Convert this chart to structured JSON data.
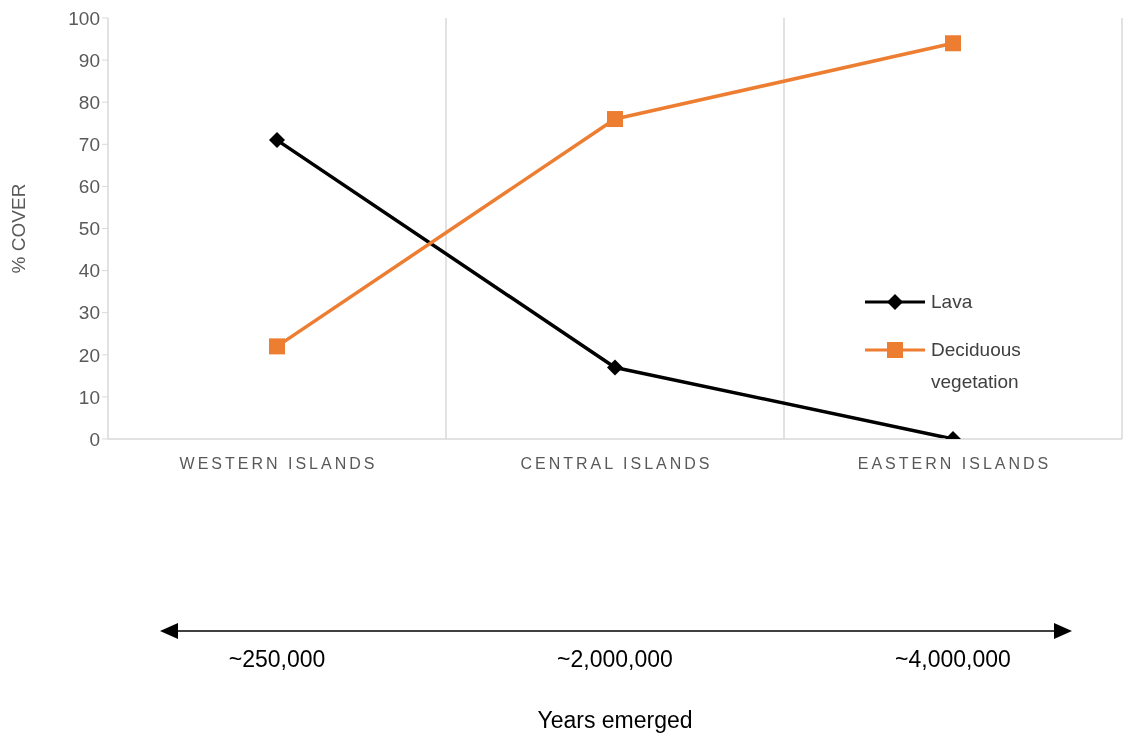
{
  "chart_data": {
    "type": "line",
    "ylabel": "% COVER",
    "categories": [
      "WESTERN ISLANDS",
      "CENTRAL ISLANDS",
      "EASTERN ISLANDS"
    ],
    "series": [
      {
        "name": "Lava",
        "color": "#000000",
        "marker": "diamond",
        "values": [
          71,
          17,
          0
        ]
      },
      {
        "name": "Deciduous vegetation",
        "color": "#ed7d31",
        "marker": "square",
        "values": [
          22,
          76,
          94
        ]
      }
    ],
    "annotations": [
      "~250,000",
      "~2,000,000",
      "~4,000,000",
      "Years emerged"
    ],
    "ylim": [
      0,
      100
    ],
    "yticks": [
      0,
      10,
      20,
      30,
      40,
      50,
      60,
      70,
      80,
      90,
      100
    ],
    "grid": "x",
    "legend": "right"
  }
}
